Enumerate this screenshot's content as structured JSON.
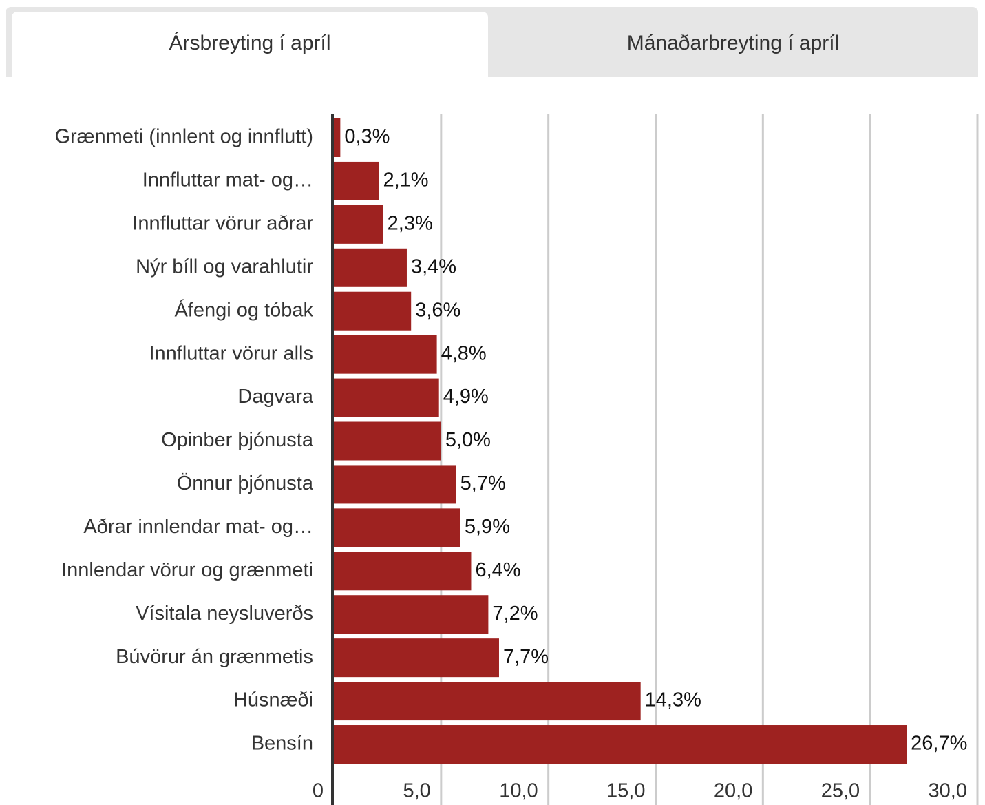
{
  "tabs": [
    "Ársbreyting í apríl",
    "Mánaðarbreyting í apríl"
  ],
  "chart_data": {
    "type": "barh",
    "categories": [
      "Grænmeti (innlent og innflutt)",
      "Innfluttar mat- og…",
      "Innfluttar vörur aðrar",
      "Nýr bíll og varahlutir",
      "Áfengi og tóbak",
      "Innfluttar vörur alls",
      "Dagvara",
      "Opinber þjónusta",
      "Önnur þjónusta",
      "Aðrar innlendar mat- og…",
      "Innlendar vörur og grænmeti",
      "Vísitala neysluverðs",
      "Búvörur án grænmetis",
      "Húsnæði",
      "Bensín"
    ],
    "values": [
      0.3,
      2.1,
      2.3,
      3.4,
      3.6,
      4.8,
      4.9,
      5.0,
      5.7,
      5.9,
      6.4,
      7.2,
      7.7,
      14.3,
      26.7
    ],
    "value_labels": [
      "0,3%",
      "2,1%",
      "2,3%",
      "3,4%",
      "3,6%",
      "4,8%",
      "4,9%",
      "5,0%",
      "5,7%",
      "5,9%",
      "6,4%",
      "7,2%",
      "7,7%",
      "14,3%",
      "26,7%"
    ],
    "color": "#9e2220",
    "xlim": [
      0,
      30
    ],
    "xticks": [
      0,
      {
        "value": 5,
        "label": "5,0"
      },
      {
        "value": 10,
        "label": "10,0"
      },
      {
        "value": 15,
        "label": "15,0"
      },
      {
        "value": 20,
        "label": "20,0"
      },
      {
        "value": 25,
        "label": "25,0"
      },
      {
        "value": 30,
        "label": "30,0"
      }
    ],
    "grid": true
  }
}
